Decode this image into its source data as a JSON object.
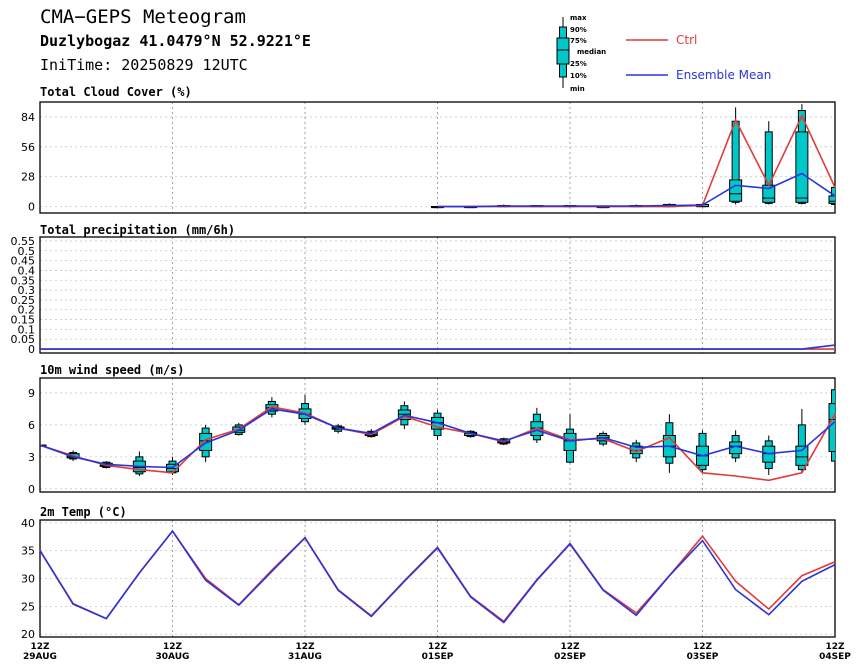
{
  "header": {
    "title": "CMA−GEPS Meteogram",
    "location": "Duzlybogaz 41.0479°N 52.9221°E",
    "init_time": "IniTime: 20250829 12UTC"
  },
  "legend": {
    "box_labels": [
      "max",
      "90%",
      "75%",
      "median",
      "25%",
      "10%",
      "min"
    ],
    "ctrl": {
      "label": "Ctrl",
      "color": "#e03a3a"
    },
    "mean": {
      "label": "Ensemble Mean",
      "color": "#2a35d8"
    },
    "box_color": "#00c8c8"
  },
  "x_axis": {
    "ticks": [
      {
        "hour": 0,
        "top": "12Z",
        "bottom": "29AUG"
      },
      {
        "hour": 24,
        "top": "12Z",
        "bottom": "30AUG"
      },
      {
        "hour": 48,
        "top": "12Z",
        "bottom": "31AUG"
      },
      {
        "hour": 72,
        "top": "12Z",
        "bottom": "01SEP"
      },
      {
        "hour": 96,
        "top": "12Z",
        "bottom": "02SEP"
      },
      {
        "hour": 120,
        "top": "12Z",
        "bottom": "03SEP"
      },
      {
        "hour": 144,
        "top": "12Z",
        "bottom": "04SEP"
      }
    ],
    "xlim": [
      0,
      144
    ]
  },
  "chart_data": [
    {
      "type": "box",
      "title": "Total Cloud Cover (%)",
      "ylim": [
        -6,
        98
      ],
      "yticks": [
        0,
        28,
        56,
        84
      ],
      "grid": true,
      "x": [
        72,
        78,
        84,
        90,
        96,
        102,
        108,
        114,
        120,
        126,
        132,
        138,
        144
      ],
      "ctrl": [
        0,
        0,
        0,
        0,
        0,
        0,
        0,
        0,
        1,
        81,
        20,
        85,
        18
      ],
      "mean": [
        0,
        0,
        0.5,
        0.5,
        0.5,
        0.5,
        0.5,
        1,
        1.5,
        20,
        17,
        31,
        10
      ],
      "boxes": [
        [
          0,
          0,
          0,
          0,
          0,
          0,
          0
        ],
        [
          0,
          0,
          0,
          0,
          0,
          0,
          0
        ],
        [
          0,
          0,
          0,
          0,
          1,
          1,
          2
        ],
        [
          0,
          0,
          0,
          0,
          1,
          1,
          1
        ],
        [
          0,
          0,
          0,
          0,
          1,
          1,
          1
        ],
        [
          0,
          0,
          0,
          0,
          0,
          0,
          1
        ],
        [
          0,
          0,
          0,
          0,
          1,
          1,
          2
        ],
        [
          0,
          0,
          0,
          0,
          2,
          2,
          3
        ],
        [
          0,
          0,
          0,
          0,
          2,
          2,
          3
        ],
        [
          2,
          4,
          5,
          12,
          25,
          80,
          93
        ],
        [
          2,
          3,
          4,
          8,
          20,
          70,
          80
        ],
        [
          2,
          3,
          4,
          8,
          70,
          90,
          96
        ],
        [
          1,
          2,
          3,
          5,
          10,
          18,
          22
        ]
      ]
    },
    {
      "type": "line",
      "title": "Total precipitation (mm/6h)",
      "ylim": [
        -0.02,
        0.57
      ],
      "yticks": [
        0,
        0.05,
        0.1,
        0.15,
        0.2,
        0.25,
        0.3,
        0.35,
        0.4,
        0.45,
        0.5,
        0.55
      ],
      "yticklabels": [
        "0",
        "0.05",
        "0.1",
        "0.15",
        "0.2",
        "0.25",
        "0.3",
        "0.35",
        "0.4",
        "0.45",
        "0.5",
        "0.55"
      ],
      "grid": true,
      "x": [
        0,
        6,
        12,
        18,
        24,
        30,
        36,
        42,
        48,
        54,
        60,
        66,
        72,
        78,
        84,
        90,
        96,
        102,
        108,
        114,
        120,
        126,
        132,
        138,
        144
      ],
      "ctrl": [
        0,
        0,
        0,
        0,
        0,
        0,
        0,
        0,
        0,
        0,
        0,
        0,
        0,
        0,
        0,
        0,
        0,
        0,
        0,
        0,
        0,
        0,
        0,
        0,
        0
      ],
      "mean": [
        0,
        0,
        0,
        0,
        0,
        0,
        0,
        0,
        0,
        0,
        0,
        0,
        0,
        0,
        0,
        0,
        0,
        0,
        0,
        0,
        0,
        0,
        0,
        0,
        0.02
      ]
    },
    {
      "type": "box",
      "title": "10m wind speed (m/s)",
      "ylim": [
        -0.3,
        10.4
      ],
      "yticks": [
        0,
        3,
        6,
        9
      ],
      "grid": true,
      "x": [
        0,
        6,
        12,
        18,
        24,
        30,
        36,
        42,
        48,
        54,
        60,
        66,
        72,
        78,
        84,
        90,
        96,
        102,
        108,
        114,
        120,
        126,
        132,
        138,
        144
      ],
      "ctrl": [
        4.1,
        3.1,
        2.2,
        1.8,
        1.5,
        4.6,
        5.6,
        7.7,
        7.1,
        5.7,
        5.1,
        6.8,
        5.8,
        5.2,
        4.4,
        5.7,
        4.6,
        4.7,
        3.5,
        4.8,
        1.5,
        1.2,
        0.8,
        1.5,
        7.0
      ],
      "mean": [
        4.1,
        3.0,
        2.3,
        2.1,
        2.0,
        4.3,
        5.5,
        7.5,
        7.0,
        5.7,
        5.2,
        6.9,
        6.2,
        5.2,
        4.5,
        5.5,
        4.5,
        4.8,
        3.9,
        4.0,
        3.1,
        4.0,
        3.3,
        3.6,
        6.3
      ],
      "boxes": [
        [
          4.1,
          4.1,
          4.1,
          4.1,
          4.1,
          4.1,
          4.1
        ],
        [
          2.6,
          2.8,
          2.9,
          3.0,
          3.3,
          3.4,
          3.6
        ],
        [
          1.9,
          2.0,
          2.1,
          2.2,
          2.4,
          2.5,
          2.6
        ],
        [
          1.2,
          1.4,
          1.6,
          2.0,
          2.6,
          3.0,
          3.5
        ],
        [
          1.3,
          1.5,
          1.6,
          1.9,
          2.3,
          2.6,
          3.0
        ],
        [
          2.5,
          3.0,
          3.6,
          4.5,
          5.2,
          5.7,
          6.0
        ],
        [
          5.0,
          5.1,
          5.3,
          5.5,
          5.8,
          6.0,
          6.2
        ],
        [
          6.7,
          7.0,
          7.3,
          7.6,
          7.9,
          8.2,
          8.6
        ],
        [
          6.0,
          6.3,
          6.6,
          7.0,
          7.5,
          8.0,
          8.8
        ],
        [
          5.2,
          5.4,
          5.6,
          5.7,
          5.8,
          5.9,
          6.1
        ],
        [
          4.8,
          4.9,
          5.0,
          5.1,
          5.3,
          5.4,
          5.6
        ],
        [
          5.6,
          6.0,
          6.5,
          7.0,
          7.4,
          7.8,
          8.2
        ],
        [
          4.6,
          5.0,
          5.6,
          6.2,
          6.7,
          7.1,
          7.4
        ],
        [
          4.8,
          4.9,
          5.0,
          5.2,
          5.3,
          5.4,
          5.5
        ],
        [
          4.1,
          4.2,
          4.3,
          4.4,
          4.6,
          4.7,
          4.8
        ],
        [
          4.3,
          4.6,
          5.0,
          5.7,
          6.3,
          7.0,
          7.6
        ],
        [
          2.4,
          2.5,
          3.6,
          4.5,
          5.2,
          5.6,
          7.0
        ],
        [
          4.0,
          4.2,
          4.5,
          4.8,
          5.0,
          5.2,
          5.4
        ],
        [
          2.5,
          2.9,
          3.3,
          3.6,
          4.0,
          4.3,
          4.6
        ],
        [
          1.5,
          2.4,
          3.0,
          4.0,
          5.0,
          6.2,
          7.0
        ],
        [
          1.5,
          1.8,
          2.2,
          3.1,
          4.0,
          5.2,
          5.5
        ],
        [
          2.5,
          2.9,
          3.3,
          4.0,
          4.4,
          5.0,
          5.5
        ],
        [
          1.3,
          1.9,
          2.5,
          3.3,
          4.0,
          4.5,
          5.0
        ],
        [
          1.5,
          1.8,
          2.2,
          3.0,
          4.0,
          6.0,
          7.5
        ],
        [
          2.0,
          2.6,
          3.5,
          6.5,
          8.0,
          9.3,
          9.7
        ]
      ]
    },
    {
      "type": "box",
      "title": "2m Temp (°C)",
      "ylim": [
        19.5,
        40.5
      ],
      "yticks": [
        20,
        25,
        30,
        35,
        40
      ],
      "grid": true,
      "x": [
        0,
        6,
        12,
        18,
        24,
        30,
        36,
        42,
        48,
        54,
        60,
        66,
        72,
        78,
        84,
        90,
        96,
        102,
        108,
        114,
        120,
        126,
        132,
        138,
        144
      ],
      "ctrl": [
        35.0,
        25.5,
        22.8,
        31.0,
        38.5,
        30.0,
        25.3,
        31.5,
        37.3,
        28.0,
        23.3,
        29.6,
        35.6,
        26.8,
        22.3,
        29.8,
        36.3,
        28.0,
        23.8,
        30.5,
        37.6,
        29.5,
        24.5,
        30.5,
        33.0
      ],
      "mean": [
        35.0,
        25.4,
        22.8,
        31.0,
        38.5,
        29.7,
        25.2,
        31.3,
        37.3,
        27.9,
        23.2,
        29.5,
        35.5,
        26.7,
        22.1,
        29.7,
        36.2,
        27.9,
        23.4,
        30.5,
        36.8,
        28.0,
        23.5,
        29.5,
        32.5
      ]
    }
  ]
}
